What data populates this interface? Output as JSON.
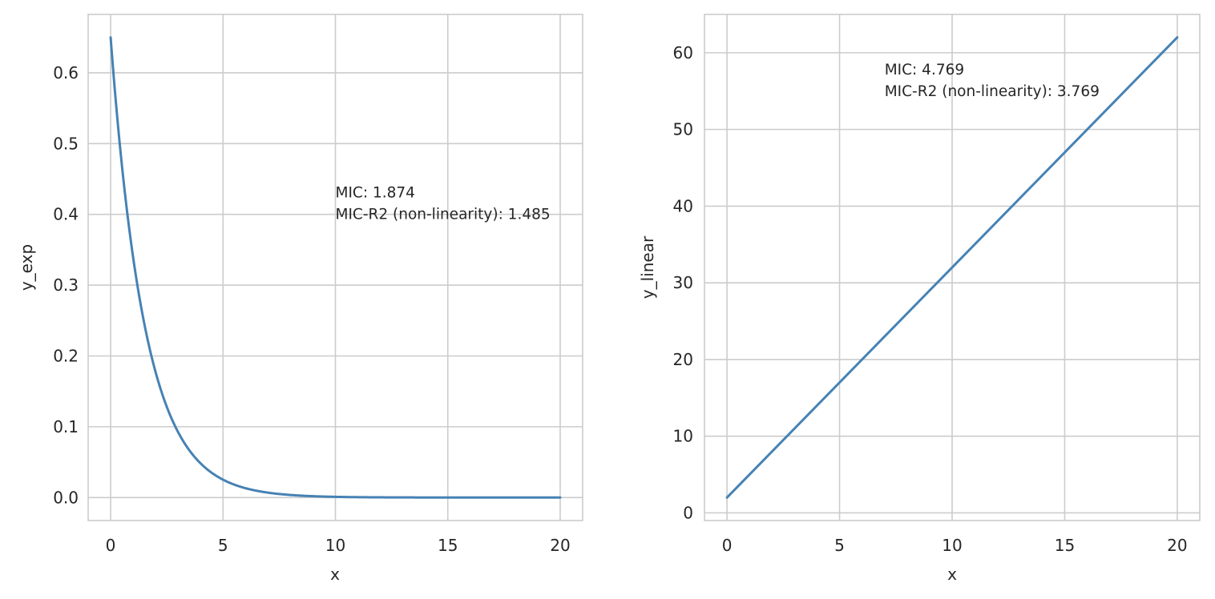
{
  "colors": {
    "series": "#4682b4",
    "grid": "#cccccc",
    "text": "#262626"
  },
  "chart_data": [
    {
      "type": "line",
      "title": "",
      "xlabel": "x",
      "ylabel": "y_exp",
      "xlim": [
        -1,
        21
      ],
      "ylim": [
        -0.0325,
        0.6825
      ],
      "xticks": [
        0,
        5,
        10,
        15,
        20
      ],
      "xtick_labels": [
        "0",
        "5",
        "10",
        "15",
        "20"
      ],
      "yticks": [
        0.0,
        0.1,
        0.2,
        0.3,
        0.4,
        0.5,
        0.6
      ],
      "ytick_labels": [
        "0.0",
        "0.1",
        "0.2",
        "0.3",
        "0.4",
        "0.5",
        "0.6"
      ],
      "grid": true,
      "function": "0.65*exp(-0.65*x)",
      "series": [
        {
          "x": [
            0,
            0.5,
            1,
            1.5,
            2,
            2.5,
            3,
            3.5,
            4,
            5,
            6,
            7,
            8,
            9,
            10,
            12,
            14,
            16,
            18,
            20
          ],
          "values": [
            0.65,
            0.4697,
            0.3394,
            0.2453,
            0.1772,
            0.1281,
            0.0925,
            0.0669,
            0.0483,
            0.0252,
            0.0132,
            0.0069,
            0.0036,
            0.0019,
            0.001,
            0.0003,
            0.0001,
            0.0,
            0.0,
            0.0
          ]
        }
      ],
      "annotation": {
        "x": 10,
        "y": 0.4,
        "lines": [
          "MIC: 1.874",
          "MIC-R2 (non-linearity): 1.485"
        ]
      }
    },
    {
      "type": "line",
      "title": "",
      "xlabel": "x",
      "ylabel": "y_linear",
      "xlim": [
        -1,
        21
      ],
      "ylim": [
        -1,
        65
      ],
      "xticks": [
        0,
        5,
        10,
        15,
        20
      ],
      "xtick_labels": [
        "0",
        "5",
        "10",
        "15",
        "20"
      ],
      "yticks": [
        0,
        10,
        20,
        30,
        40,
        50,
        60
      ],
      "ytick_labels": [
        "0",
        "10",
        "20",
        "30",
        "40",
        "50",
        "60"
      ],
      "grid": true,
      "function": "3*x + 2",
      "series": [
        {
          "x": [
            0,
            20
          ],
          "values": [
            2,
            62
          ]
        }
      ],
      "annotation": {
        "x": 7,
        "y": 55,
        "lines": [
          "MIC: 4.769",
          "MIC-R2 (non-linearity): 3.769"
        ]
      }
    }
  ]
}
